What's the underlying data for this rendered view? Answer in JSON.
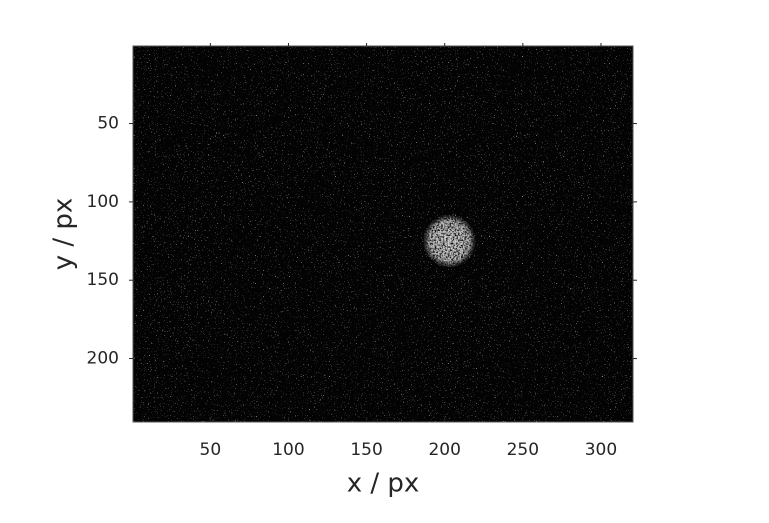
{
  "chart_data": {
    "type": "image",
    "xlabel": "x / px",
    "ylabel": "y / px",
    "xlim": [
      0.5,
      320.5
    ],
    "ylim": [
      0.5,
      240.5
    ],
    "y_reversed": true,
    "xticks": [
      50,
      100,
      150,
      200,
      250,
      300
    ],
    "yticks": [
      50,
      100,
      150,
      200
    ],
    "spot": {
      "cx": 203,
      "cy": 125,
      "r": 17
    },
    "background_color": "#030303",
    "spot_color": "#d8d8d8"
  }
}
